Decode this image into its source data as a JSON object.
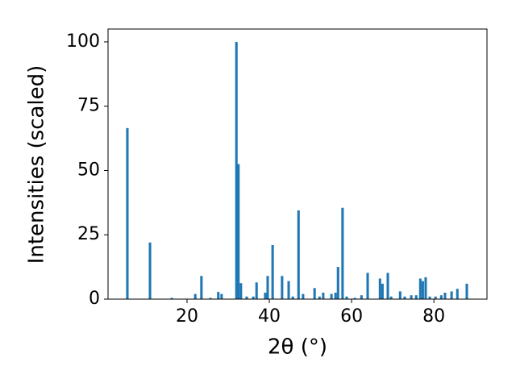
{
  "chart_data": {
    "type": "bar",
    "x_label": "2θ (°)",
    "y_label": "Intensities (scaled)",
    "color": "#1f77b4",
    "xlim": [
      0.8,
      92.9
    ],
    "ylim": [
      0,
      105
    ],
    "xticks": [
      20,
      40,
      60,
      80
    ],
    "yticks": [
      0,
      25,
      50,
      75,
      100
    ],
    "x": [
      5.5,
      11.0,
      16.3,
      22.0,
      23.5,
      25.7,
      27.6,
      28.4,
      32.0,
      32.5,
      33.1,
      34.5,
      36.1,
      36.9,
      39.0,
      39.6,
      40.8,
      43.1,
      44.7,
      45.7,
      47.1,
      48.2,
      51.0,
      52.2,
      53.1,
      55.1,
      56.1,
      56.7,
      57.8,
      58.8,
      60.8,
      62.4,
      63.9,
      66.9,
      67.5,
      68.8,
      69.6,
      71.8,
      72.9,
      74.5,
      75.7,
      76.7,
      77.3,
      78.0,
      79.0,
      80.4,
      81.8,
      82.7,
      84.3,
      85.7,
      88.0
    ],
    "values": [
      66.5,
      22,
      0.5,
      2,
      9,
      0.5,
      2.8,
      2,
      100,
      52.5,
      6.2,
      1,
      1,
      6.5,
      2.5,
      9,
      21,
      9,
      7,
      1,
      34.5,
      2,
      4.3,
      1,
      2.5,
      2,
      2.5,
      12.5,
      35.5,
      1,
      0.5,
      1.5,
      10.2,
      8,
      6,
      10.2,
      1,
      3,
      1,
      1.5,
      1.5,
      8,
      7,
      8.5,
      1,
      1,
      1.5,
      2.5,
      3,
      4,
      6
    ]
  }
}
